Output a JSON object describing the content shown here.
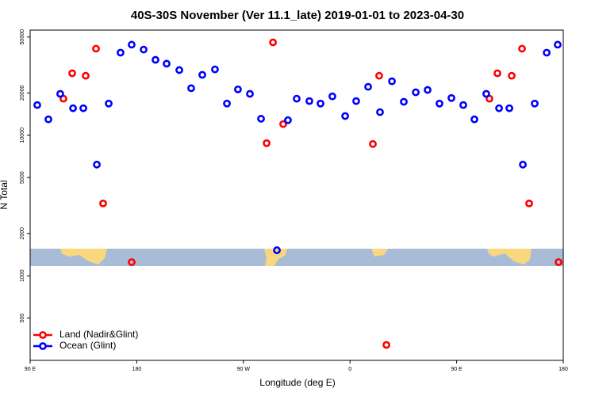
{
  "chart_data": {
    "type": "scatter",
    "title": "40S-30S November (Ver 11.1_late)   2019-01-01 to 2023-04-30",
    "x_label": "Longitude (deg E)",
    "y_label": "N Total",
    "xlim": [
      90,
      540
    ],
    "ylim": [
      250,
      56000
    ],
    "log_y": true,
    "legend": "bottom-left",
    "xticks": [
      {
        "value": 90,
        "label": "90 E"
      },
      180,
      {
        "value": 270,
        "label": "90 W"
      },
      {
        "value": 360,
        "label": "0"
      },
      {
        "value": 450,
        "label": "90 E"
      },
      {
        "value": 540,
        "label": "180"
      }
    ],
    "yticks": [
      500,
      1000,
      2000,
      5000,
      10000,
      20000,
      50000
    ],
    "series": [
      {
        "name": "Land (Nadir&Glint)",
        "color": "#ff0000",
        "x": [
          118.1,
          125.5,
          136.9,
          145.6,
          151.6,
          175.7,
          289.6,
          295,
          303.6,
          379.3,
          384.6,
          390.7,
          477.7,
          484.4,
          496.5,
          505.2,
          511.2,
          536
        ],
        "values": [
          18200,
          27600,
          26500,
          41300,
          3270,
          1250,
          8780,
          45800,
          12000,
          8660,
          26500,
          322,
          18200,
          27600,
          26500,
          41300,
          3270,
          1250
        ]
      },
      {
        "name": "Ocean (Glint)",
        "color": "#0000ff",
        "x": [
          96,
          105.4,
          115.4,
          126.2,
          134.9,
          146.3,
          156.3,
          166.3,
          175.7,
          185.8,
          195.8,
          205.2,
          215.9,
          225.9,
          235.3,
          246,
          256.1,
          265.4,
          275.5,
          284.9,
          298.3,
          307.6,
          315,
          325.7,
          335.1,
          345.1,
          355.9,
          365.2,
          375.3,
          385.3,
          395.4,
          405.4,
          415.5,
          425.5,
          435.5,
          445.6,
          455.6,
          465,
          475,
          485.8,
          494.5,
          505.9,
          515.9,
          526,
          535.3
        ],
        "values": [
          16400,
          12970,
          19700,
          15560,
          15560,
          6180,
          16800,
          38700,
          44100,
          40700,
          34400,
          32300,
          29100,
          21600,
          26900,
          29400,
          16800,
          21200,
          19700,
          13100,
          1520,
          12800,
          18200,
          17500,
          16800,
          18900,
          13700,
          17500,
          22100,
          14600,
          24200,
          17300,
          20200,
          21000,
          16800,
          18400,
          16400,
          12970,
          19700,
          15560,
          15560,
          6180,
          16800,
          38700,
          44100
        ]
      }
    ]
  }
}
